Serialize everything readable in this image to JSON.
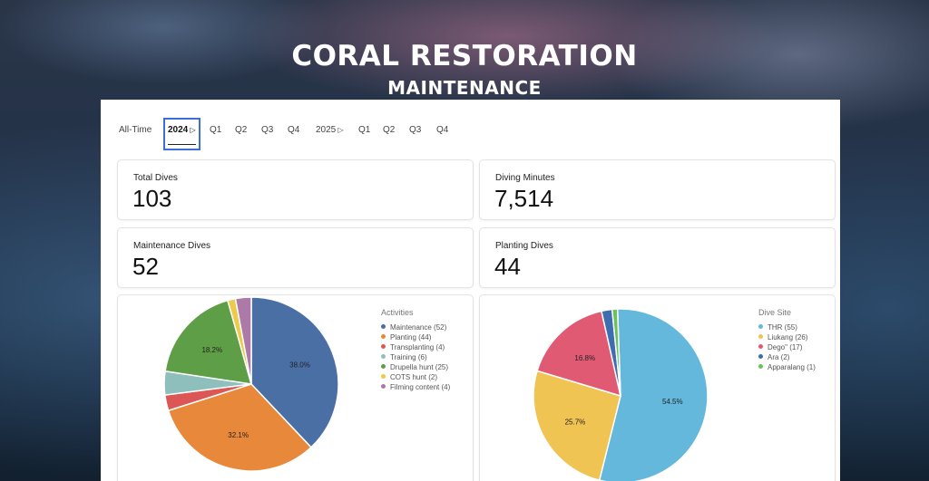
{
  "header": {
    "title": "CORAL RESTORATION",
    "subtitle": "MAINTENANCE"
  },
  "filters": {
    "tabs": [
      {
        "label": "All-Time"
      },
      {
        "label": "2024",
        "active": true
      },
      {
        "label": "Q1"
      },
      {
        "label": "Q2"
      },
      {
        "label": "Q3"
      },
      {
        "label": "Q4"
      },
      {
        "label": "2025"
      },
      {
        "label": "Q1"
      },
      {
        "label": "Q2"
      },
      {
        "label": "Q3"
      },
      {
        "label": "Q4"
      }
    ]
  },
  "stats": {
    "total_dives": {
      "label": "Total Dives",
      "value": "103"
    },
    "diving_minutes": {
      "label": "Diving Minutes",
      "value": "7,514"
    },
    "maintenance_dives": {
      "label": "Maintenance Dives",
      "value": "52"
    },
    "planting_dives": {
      "label": "Planting Dives",
      "value": "44"
    }
  },
  "colors": {
    "accent": "#3b6fd6"
  },
  "chart_data": [
    {
      "type": "pie",
      "title": "Activities",
      "slices": [
        {
          "name": "Maintenance (52)",
          "value": 52,
          "color": "#4a6fa5",
          "label": "38.0%"
        },
        {
          "name": "Planting (44)",
          "value": 44,
          "color": "#e8883a",
          "label": "32.1%"
        },
        {
          "name": "Transplanting (4)",
          "value": 4,
          "color": "#dc5656",
          "label": ""
        },
        {
          "name": "Training (6)",
          "value": 6,
          "color": "#8fbfbd",
          "label": ""
        },
        {
          "name": "Drupella hunt (25)",
          "value": 25,
          "color": "#5e9e47",
          "label": "18.2%"
        },
        {
          "name": "COTS hunt (2)",
          "value": 2,
          "color": "#edc94c",
          "label": ""
        },
        {
          "name": "Filming content (4)",
          "value": 4,
          "color": "#ad7aa8",
          "label": ""
        }
      ]
    },
    {
      "type": "pie",
      "title": "Dive Site",
      "slices": [
        {
          "name": "THR (55)",
          "value": 55,
          "color": "#63b8db",
          "label": "54.5%"
        },
        {
          "name": "Liukang (26)",
          "value": 26,
          "color": "#f0c453",
          "label": "25.7%"
        },
        {
          "name": "Dego\" (17)",
          "value": 17,
          "color": "#e05a73",
          "label": "16.8%"
        },
        {
          "name": "Ara (2)",
          "value": 2,
          "color": "#3e6db0",
          "label": ""
        },
        {
          "name": "Apparalang (1)",
          "value": 1,
          "color": "#6cc25a",
          "label": ""
        }
      ]
    }
  ]
}
